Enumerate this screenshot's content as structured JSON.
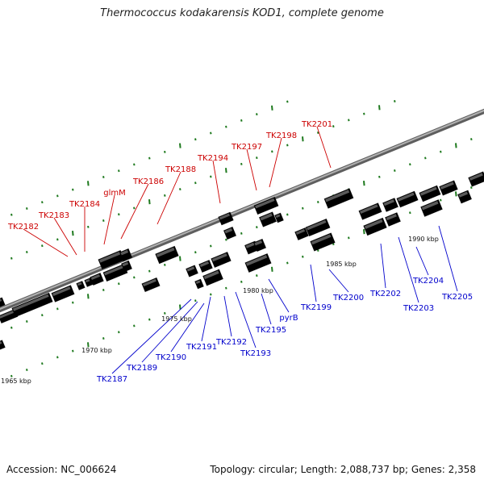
{
  "title": "Thermococcus kodakarensis KOD1, complete genome",
  "footer": {
    "accession": "Accession: NC_006624",
    "summary": "Topology: circular; Length: 2,088,737 bp; Genes: 2,358"
  },
  "colors": {
    "forward_gene": "#e8101a",
    "reverse_gene": "#1a1ae6",
    "tick": "#1f7a1f",
    "backbone": "#7a7a7a",
    "forward_label": "#cc0000",
    "reverse_label": "#0000cc",
    "rna_cyan": "#2bc8d8",
    "grey_block": "#5a5a5a",
    "light_grey_block": "#bcbcbc",
    "orange_block": "#f08a10",
    "olive_block": "#b8b070",
    "steel_block": "#4f86b8"
  },
  "scale_labels": [
    {
      "text": "1965 kbp",
      "kbp": 1965
    },
    {
      "text": "1970 kbp",
      "kbp": 1970
    },
    {
      "text": "1975 kbp",
      "kbp": 1975
    },
    {
      "text": "1980 kbp",
      "kbp": 1980
    },
    {
      "text": "1985 kbp",
      "kbp": 1985
    },
    {
      "text": "1990 kbp",
      "kbp": 1990
    }
  ],
  "forward_gene_labels": [
    "TK2182",
    "TK2183",
    "TK2184",
    "glmM",
    "TK2186",
    "TK2188",
    "TK2194",
    "TK2197",
    "TK2198",
    "TK2201"
  ],
  "reverse_gene_labels": [
    "TK2187",
    "TK2189",
    "TK2190",
    "TK2191",
    "TK2192",
    "TK2193",
    "TK2195",
    "pyrB",
    "TK2199",
    "TK2200",
    "TK2202",
    "TK2203",
    "TK2204",
    "TK2205"
  ]
}
